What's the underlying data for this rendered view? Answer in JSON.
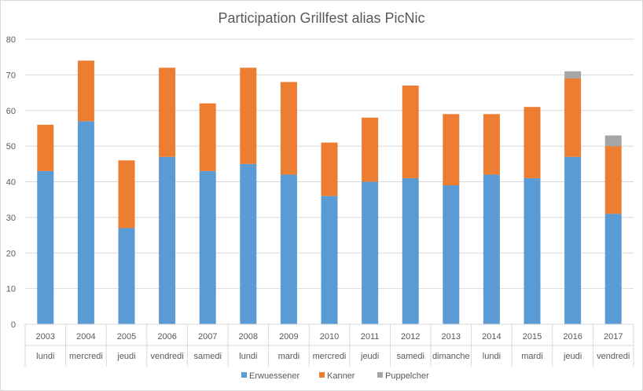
{
  "chart_data": {
    "type": "bar",
    "stacked": true,
    "title": "Participation Grillfest alias PicNic",
    "xlabel": "",
    "ylabel": "",
    "ylim": [
      0,
      80
    ],
    "yticks": [
      0,
      10,
      20,
      30,
      40,
      50,
      60,
      70,
      80
    ],
    "grid": true,
    "legend_position": "bottom",
    "categories": [
      "2003",
      "2004",
      "2005",
      "2006",
      "2007",
      "2008",
      "2009",
      "2010",
      "2011",
      "2012",
      "2013",
      "2014",
      "2015",
      "2016",
      "2017"
    ],
    "category_sublabels": [
      "lundi",
      "mercredi",
      "jeudi",
      "vendredi",
      "samedi",
      "lundi",
      "mardi",
      "mercredi",
      "jeudi",
      "samedi",
      "dimanche",
      "lundi",
      "mardi",
      "jeudi",
      "vendredi"
    ],
    "series": [
      {
        "name": "Erwuessener",
        "color": "#5b9bd5",
        "values": [
          43,
          57,
          27,
          47,
          43,
          45,
          42,
          36,
          40,
          41,
          39,
          42,
          41,
          47,
          31
        ]
      },
      {
        "name": "Kanner",
        "color": "#ed7d31",
        "values": [
          13,
          17,
          19,
          25,
          19,
          27,
          26,
          15,
          18,
          26,
          20,
          17,
          20,
          22,
          19
        ]
      },
      {
        "name": "Puppelcher",
        "color": "#a5a5a5",
        "values": [
          0,
          0,
          0,
          0,
          0,
          0,
          0,
          0,
          0,
          0,
          0,
          0,
          0,
          2,
          3
        ]
      }
    ]
  }
}
